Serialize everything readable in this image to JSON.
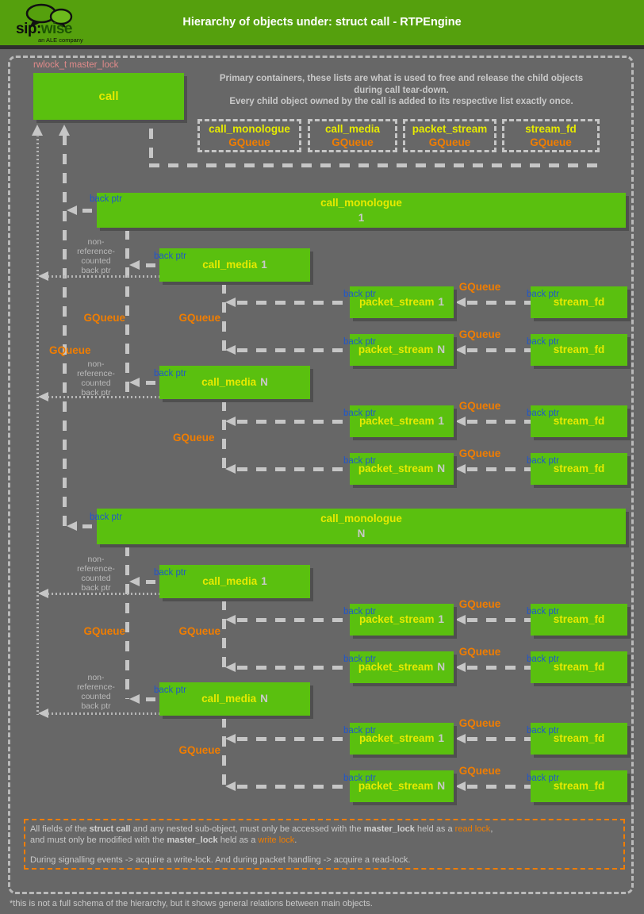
{
  "header": {
    "title": "Hierarchy of objects under: struct call - RTPEngine",
    "brand_prefix": "sip:",
    "brand_suffix": "wise",
    "tagline": "an ALE company"
  },
  "master_lock_label": "rwlock_t master_lock",
  "call_label": "call",
  "intro": {
    "line1": "Primary containers, these lists are what is used to free and release the child objects",
    "line2": "during call tear-down.",
    "line3": "Every child object owned by the call is added to its respective list exactly once."
  },
  "legend_queues": [
    {
      "title": "call_monologue",
      "type": "GQueue"
    },
    {
      "title": "call_media",
      "type": "GQueue"
    },
    {
      "title": "packet_stream",
      "type": "GQueue"
    },
    {
      "title": "stream_fd",
      "type": "GQueue"
    }
  ],
  "labels": {
    "back_ptr": "back ptr",
    "gqueue": "GQueue",
    "non_ref_1": "non-",
    "non_ref_2": "reference-",
    "non_ref_3": "counted",
    "non_ref_4": "back ptr"
  },
  "nodes": {
    "call_monologue": "call_monologue",
    "call_media": "call_media",
    "packet_stream": "packet_stream",
    "stream_fd": "stream_fd",
    "idx_1": "1",
    "idx_n": "N"
  },
  "lock_note": {
    "line1": [
      {
        "t": "All fields of the "
      },
      {
        "t": "struct call",
        "s": "bold"
      },
      {
        "t": " and any nested sub-object, must only be accessed with the "
      },
      {
        "t": "master_lock",
        "s": "bold"
      },
      {
        "t": " held as a "
      },
      {
        "t": "read lock",
        "s": "orange"
      },
      {
        "t": ","
      }
    ],
    "line2": [
      {
        "t": "and must only be modified with the "
      },
      {
        "t": "master_lock",
        "s": "bold"
      },
      {
        "t": " held as a "
      },
      {
        "t": "write lock",
        "s": "orange"
      },
      {
        "t": "."
      }
    ],
    "line3": [
      {
        "t": "During signalling events -> acquire a write-lock. And during packet handling -> acquire a read-lock."
      }
    ]
  },
  "footnote": "*this is not a full schema of the hierarchy, but it shows general relations between main objects.",
  "colors": {
    "background": "#676767",
    "header_green": "#55a00d",
    "box_green": "#5ac00f",
    "title_yellow": "#e6ea00",
    "gqueue_orange": "#f07d00",
    "back_ptr_blue": "#2057c9",
    "master_lock_pink": "#e08a8a",
    "wire_gray": "#c6c6c6"
  }
}
